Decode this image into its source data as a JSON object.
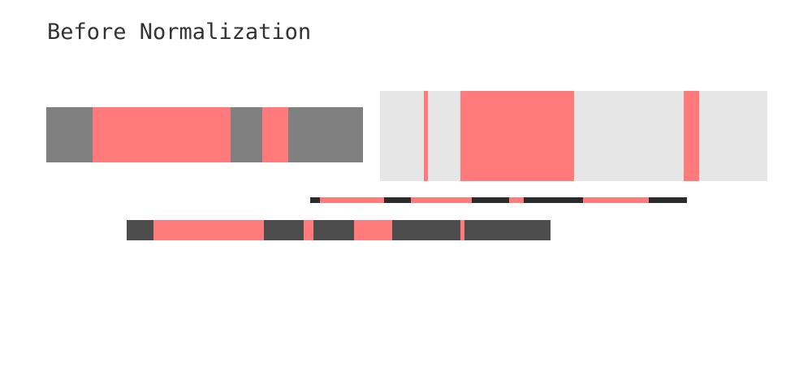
{
  "title": "Before Normalization",
  "colors": {
    "highlight": "#ff7a7a",
    "bar_1": "#808080",
    "bar_2": "#e6e6e6",
    "bar_3": "#2b2b2b",
    "bar_4": "#4d4d4d"
  },
  "bars": [
    {
      "name": "bar-1",
      "color_key": "bar_1",
      "highlights": [
        {
          "start": 0.147,
          "end": 0.582
        },
        {
          "start": 0.682,
          "end": 0.763
        }
      ]
    },
    {
      "name": "bar-2",
      "color_key": "bar_2",
      "highlights": [
        {
          "start": 0.113,
          "end": 0.124
        },
        {
          "start": 0.208,
          "end": 0.502
        },
        {
          "start": 0.784,
          "end": 0.824
        }
      ]
    },
    {
      "name": "bar-3",
      "color_key": "bar_3",
      "highlights": [
        {
          "start": 0.026,
          "end": 0.196
        },
        {
          "start": 0.267,
          "end": 0.428
        },
        {
          "start": 0.527,
          "end": 0.566
        },
        {
          "start": 0.724,
          "end": 0.898
        }
      ]
    },
    {
      "name": "bar-4",
      "color_key": "bar_4",
      "highlights": [
        {
          "start": 0.063,
          "end": 0.324
        },
        {
          "start": 0.418,
          "end": 0.441
        },
        {
          "start": 0.536,
          "end": 0.627
        },
        {
          "start": 0.788,
          "end": 0.797
        }
      ]
    }
  ]
}
